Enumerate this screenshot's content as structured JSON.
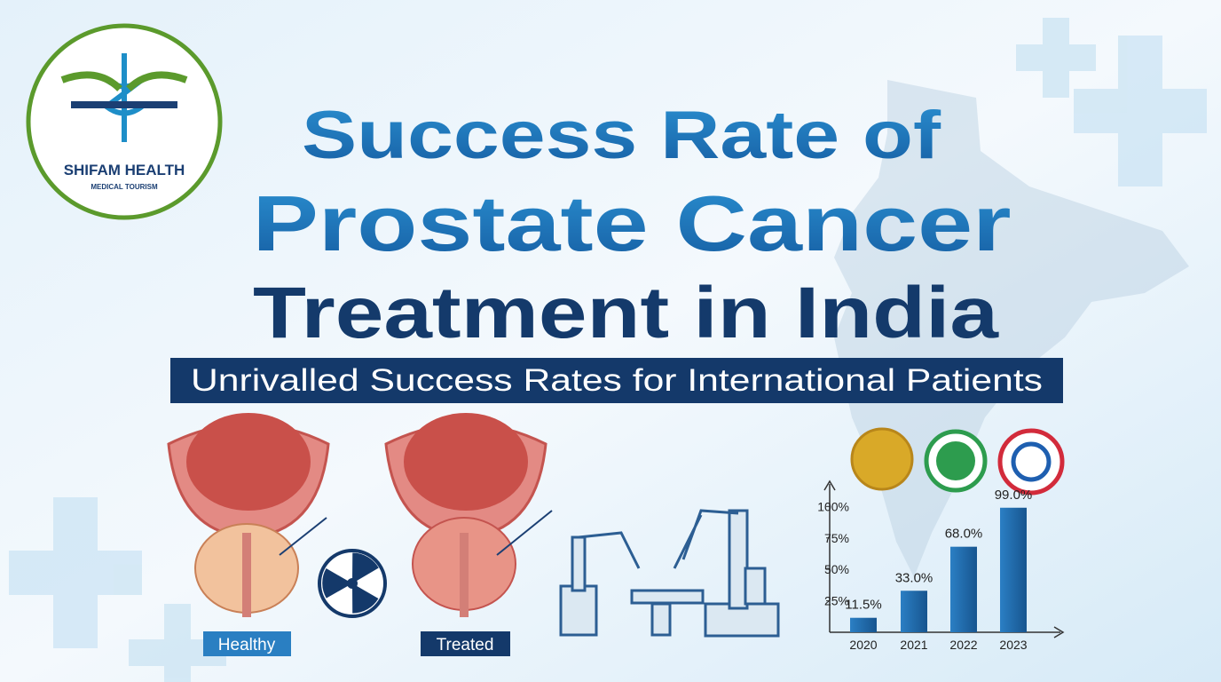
{
  "logo": {
    "name": "SHIFAM HEALTH",
    "tagline": "MEDICAL TOURISM"
  },
  "title": {
    "line1": "Success Rate of",
    "line2": "Prostate Cancer",
    "line3": "Treatment in India"
  },
  "subtitle": "Unrivalled Success Rates for International Patients",
  "labels": {
    "healthy": "Healthy",
    "treated": "Treated"
  },
  "chart_data": {
    "type": "bar",
    "categories": [
      "2020",
      "2021",
      "2022",
      "2023"
    ],
    "values": [
      11.5,
      33.0,
      68.0,
      99.0
    ],
    "value_labels": [
      "11.5%",
      "33.0%",
      "68.0%",
      "99.0%"
    ],
    "color": "#1f6fb5",
    "ylim": [
      0,
      120
    ],
    "yticks": [
      {
        "value": 25,
        "label": "25%"
      },
      {
        "value": 50,
        "label": "50%"
      },
      {
        "value": 75,
        "label": "75%"
      },
      {
        "value": 100,
        "label": "100%"
      }
    ]
  }
}
